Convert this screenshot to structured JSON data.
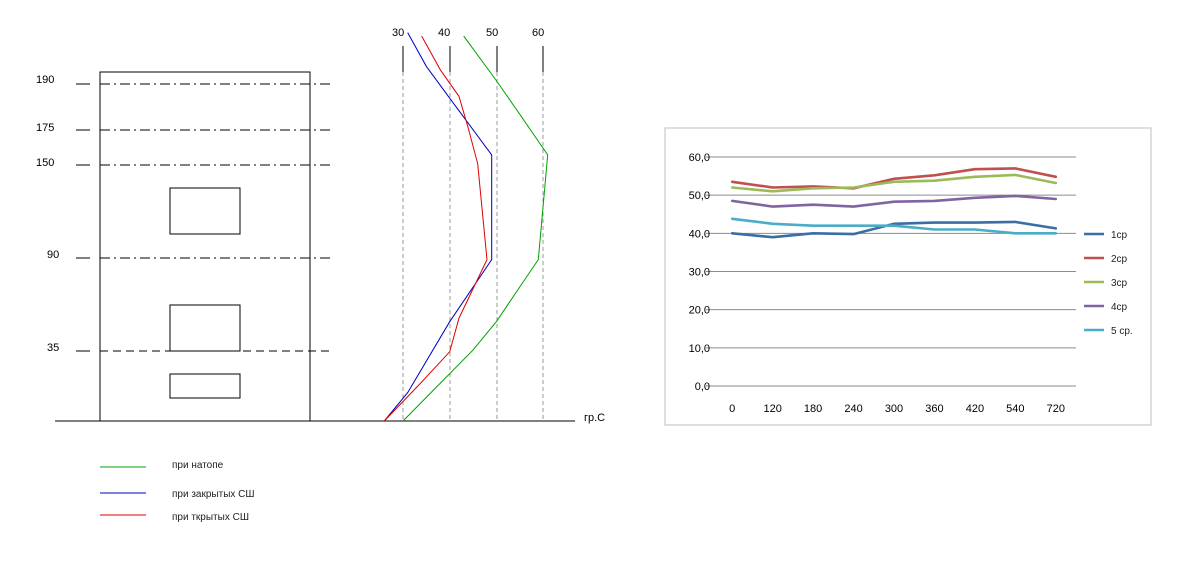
{
  "chart_data": [
    {
      "type": "line",
      "title": "",
      "xlabel": "гр.С",
      "ylabel": "",
      "x_ticks": [
        "30",
        "40",
        "50",
        "60"
      ],
      "xlim": [
        21,
        61
      ],
      "y_levels": [
        "190",
        "175",
        "150",
        "90",
        "35"
      ],
      "ylim": [
        0,
        220
      ],
      "legend_position": "bottom-left",
      "series": [
        {
          "name": "при натопе",
          "color": "#00a000",
          "points": [
            {
              "t": 43,
              "h": 217
            },
            {
              "t": 50,
              "h": 192
            },
            {
              "t": 55,
              "h": 173
            },
            {
              "t": 61,
              "h": 150
            },
            {
              "t": 59,
              "h": 91
            },
            {
              "t": 50,
              "h": 56
            },
            {
              "t": 45,
              "h": 40
            },
            {
              "t": 36,
              "h": 16
            },
            {
              "t": 30,
              "h": 0
            }
          ]
        },
        {
          "name": "при закрытых СШ",
          "color": "#0000c0",
          "points": [
            {
              "t": 31,
              "h": 219
            },
            {
              "t": 35,
              "h": 200
            },
            {
              "t": 40,
              "h": 182
            },
            {
              "t": 49,
              "h": 150
            },
            {
              "t": 49,
              "h": 91
            },
            {
              "t": 40,
              "h": 56
            },
            {
              "t": 31,
              "h": 16
            },
            {
              "t": 26,
              "h": 0
            }
          ]
        },
        {
          "name": "при ткрытых СШ",
          "color": "#e00000",
          "points": [
            {
              "t": 34,
              "h": 217
            },
            {
              "t": 38,
              "h": 198
            },
            {
              "t": 42,
              "h": 183
            },
            {
              "t": 44,
              "h": 165
            },
            {
              "t": 46,
              "h": 145
            },
            {
              "t": 48,
              "h": 91
            },
            {
              "t": 42,
              "h": 58
            },
            {
              "t": 40,
              "h": 39
            },
            {
              "t": 34,
              "h": 22
            },
            {
              "t": 26,
              "h": 0
            }
          ]
        }
      ]
    },
    {
      "type": "line",
      "title": "",
      "xlabel": "",
      "ylabel": "",
      "categories": [
        "0",
        "120",
        "180",
        "240",
        "300",
        "360",
        "420",
        "540",
        "720"
      ],
      "y_ticks": [
        "0,0",
        "10,0",
        "20,0",
        "30,0",
        "40,0",
        "50,0",
        "60,0"
      ],
      "ylim": [
        0,
        60
      ],
      "grid": true,
      "legend_position": "right",
      "series": [
        {
          "name": "1ср",
          "color": "#3a6ea5",
          "values": [
            40.0,
            39.0,
            40.0,
            39.8,
            42.5,
            42.8,
            42.8,
            43.0,
            41.3
          ]
        },
        {
          "name": "2ср",
          "color": "#c0504d",
          "values": [
            53.5,
            52.0,
            52.3,
            51.8,
            54.3,
            55.2,
            56.8,
            57.0,
            54.8
          ]
        },
        {
          "name": "3ср",
          "color": "#9bbb59",
          "values": [
            52.0,
            51.0,
            51.8,
            52.0,
            53.5,
            53.8,
            54.8,
            55.3,
            53.2
          ]
        },
        {
          "name": "4ср",
          "color": "#8064a2",
          "values": [
            48.5,
            47.0,
            47.5,
            47.0,
            48.3,
            48.5,
            49.3,
            49.8,
            49.0
          ]
        },
        {
          "name": "5 ср.",
          "color": "#4bacc6",
          "values": [
            43.8,
            42.5,
            42.0,
            42.0,
            42.0,
            41.0,
            41.0,
            40.0,
            40.0
          ]
        }
      ]
    }
  ]
}
